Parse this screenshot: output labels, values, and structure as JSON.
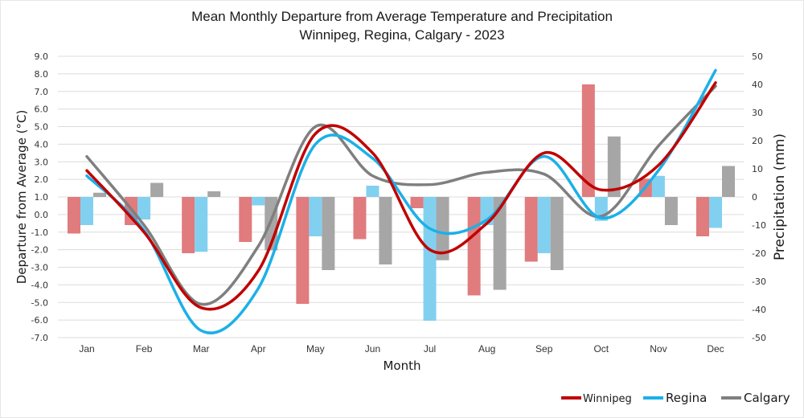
{
  "chart_data": {
    "type": "bar+line",
    "title": "Mean Monthly Departure from Average Temperature and Precipitation",
    "subtitle": "Winnipeg, Regina, Calgary - 2023",
    "xlabel": "Month",
    "ylabel_left": "Departure from Average (°C)",
    "ylabel_right": "Precipitation (mm)",
    "categories": [
      "Jan",
      "Feb",
      "Mar",
      "Apr",
      "May",
      "Jun",
      "Jul",
      "Aug",
      "Sep",
      "Oct",
      "Nov",
      "Dec"
    ],
    "ylim_left": [
      -7.0,
      9.0
    ],
    "yticks_left": [
      "9.0",
      "8.0",
      "7.0",
      "6.0",
      "5.0",
      "4.0",
      "3.0",
      "2.0",
      "1.0",
      "0.0",
      "-1.0",
      "-2.0",
      "-3.0",
      "-4.0",
      "-5.0",
      "-6.0",
      "-7.0"
    ],
    "ylim_right": [
      -50,
      50
    ],
    "yticks_right": [
      "50",
      "40",
      "30",
      "20",
      "10",
      "0",
      "-10",
      "-20",
      "-30",
      "-40",
      "-50"
    ],
    "grid": true,
    "legend_position": "bottom-right",
    "temperature_series": [
      {
        "name": "Winnipeg",
        "color": "#c00000",
        "values": [
          2.5,
          -1.0,
          -5.3,
          -3.2,
          4.6,
          3.5,
          -2.0,
          -0.5,
          3.5,
          1.4,
          2.8,
          7.5
        ]
      },
      {
        "name": "Regina",
        "color": "#1cb0e8",
        "values": [
          2.2,
          -0.9,
          -6.6,
          -4.2,
          4.0,
          3.2,
          -0.8,
          -0.3,
          3.3,
          -0.2,
          2.5,
          8.2
        ]
      },
      {
        "name": "Calgary",
        "color": "#7f7f7f",
        "values": [
          3.3,
          -0.6,
          -5.1,
          -1.8,
          5.0,
          2.2,
          1.7,
          2.4,
          2.3,
          -0.1,
          3.9,
          7.3
        ]
      }
    ],
    "precipitation_series": [
      {
        "name": "Winnipeg",
        "color": "#e07b7e",
        "values": [
          -13,
          -10,
          -20,
          -16,
          -38,
          -15,
          -4,
          -35,
          -23,
          40,
          6.5,
          -14
        ]
      },
      {
        "name": "Regina",
        "color": "#82d0f0",
        "values": [
          -10,
          -8,
          -19.5,
          -3,
          -14,
          4,
          -44,
          -10,
          -20,
          -8.5,
          7.5,
          -11
        ]
      },
      {
        "name": "Calgary",
        "color": "#a6a6a6",
        "values": [
          1.5,
          5,
          2,
          -19,
          -26,
          -24,
          -22.5,
          -33,
          -26,
          21.5,
          -10,
          11
        ]
      }
    ]
  },
  "legend": {
    "items": [
      {
        "label": "Winnipeg",
        "color": "#c00000"
      },
      {
        "label": "Regina",
        "color": "#1cb0e8"
      },
      {
        "label": "Calgary",
        "color": "#7f7f7f"
      }
    ]
  }
}
